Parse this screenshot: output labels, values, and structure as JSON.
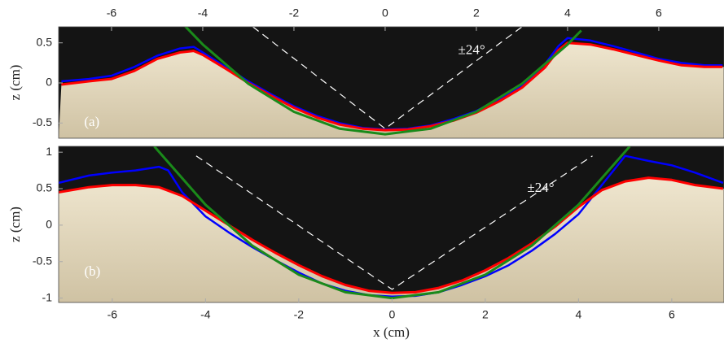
{
  "chart_data": [
    {
      "type": "line",
      "xaxis_position": "top",
      "xlim": [
        -7.16,
        7.43
      ],
      "ylim": [
        -0.69,
        0.7
      ],
      "xticks": [
        -6,
        -4,
        -2,
        0,
        2,
        4,
        6
      ],
      "yticks": [
        -0.5,
        0,
        0.5
      ],
      "ylabel": "z (cm)",
      "annotations": [
        {
          "text": "(a)",
          "x": -6.6,
          "y": -0.5
        },
        {
          "text": "±24°",
          "x": 1.6,
          "y": 0.4
        }
      ],
      "series": [
        {
          "color": "#0000ff",
          "x": [
            -7.1,
            -6.5,
            -6,
            -5.5,
            -5,
            -4.5,
            -4.2,
            -4,
            -3.5,
            -3,
            -2.5,
            -2,
            -1.5,
            -1,
            -0.5,
            0,
            0.5,
            1,
            1.5,
            2,
            2.5,
            3,
            3.5,
            3.8,
            4,
            4.5,
            5,
            5.5,
            6,
            6.5,
            7,
            7.4
          ],
          "values": [
            0.02,
            0.05,
            0.09,
            0.2,
            0.34,
            0.43,
            0.45,
            0.38,
            0.2,
            0.02,
            -0.14,
            -0.29,
            -0.41,
            -0.5,
            -0.56,
            -0.58,
            -0.57,
            -0.53,
            -0.45,
            -0.35,
            -0.2,
            -0.03,
            0.23,
            0.46,
            0.56,
            0.53,
            0.46,
            0.38,
            0.3,
            0.25,
            0.22,
            0.22
          ]
        },
        {
          "color": "#ff0000",
          "x": [
            -7.1,
            -6.5,
            -6,
            -5.5,
            -5,
            -4.5,
            -4.2,
            -4,
            -3.5,
            -3,
            -2.5,
            -2,
            -1.5,
            -1,
            -0.5,
            0,
            0.5,
            1,
            1.5,
            2,
            2.5,
            3,
            3.5,
            3.8,
            4,
            4.5,
            5,
            5.5,
            6,
            6.5,
            7,
            7.4
          ],
          "values": [
            -0.02,
            0.02,
            0.05,
            0.15,
            0.3,
            0.38,
            0.4,
            0.35,
            0.18,
            0.0,
            -0.16,
            -0.31,
            -0.43,
            -0.52,
            -0.57,
            -0.59,
            -0.58,
            -0.54,
            -0.47,
            -0.37,
            -0.23,
            -0.06,
            0.19,
            0.41,
            0.5,
            0.48,
            0.42,
            0.35,
            0.28,
            0.22,
            0.2,
            0.2
          ]
        },
        {
          "color": "#1a8a1a",
          "x": [
            -4.4,
            -4,
            -3,
            -2,
            -1,
            0,
            1,
            2,
            3,
            4,
            4.3
          ],
          "values": [
            0.715,
            0.48,
            -0.01,
            -0.36,
            -0.57,
            -0.64,
            -0.57,
            -0.36,
            -0.01,
            0.48,
            0.654
          ]
        },
        {
          "color": "#ffffff",
          "dashed": true,
          "x": [
            -2.9,
            0,
            3
          ],
          "values": [
            0.7,
            -0.57,
            0.7
          ]
        }
      ]
    },
    {
      "type": "line",
      "xaxis_position": "bottom",
      "xlim": [
        -7.15,
        7.12
      ],
      "ylim": [
        -1.06,
        1.08
      ],
      "xticks": [
        -6,
        -4,
        -2,
        0,
        2,
        4,
        6
      ],
      "yticks": [
        -1,
        -0.5,
        0,
        0.5,
        1
      ],
      "xlabel": "x (cm)",
      "ylabel": "z (cm)",
      "annotations": [
        {
          "text": "(b)",
          "x": -6.6,
          "y": -0.65
        },
        {
          "text": "±24°",
          "x": 2.9,
          "y": 0.5
        }
      ],
      "series": [
        {
          "color": "#0000ff",
          "x": [
            -7.15,
            -6.5,
            -6,
            -5.5,
            -5,
            -4.8,
            -4.5,
            -4,
            -3.5,
            -3,
            -2.5,
            -2,
            -1.5,
            -1,
            -0.5,
            0,
            0.5,
            1,
            1.5,
            2,
            2.5,
            3,
            3.5,
            4,
            4.5,
            5,
            5.5,
            6,
            6.5,
            7.1
          ],
          "values": [
            0.58,
            0.68,
            0.72,
            0.75,
            0.8,
            0.75,
            0.45,
            0.12,
            -0.1,
            -0.3,
            -0.48,
            -0.65,
            -0.8,
            -0.9,
            -0.96,
            -0.98,
            -0.97,
            -0.92,
            -0.82,
            -0.7,
            -0.55,
            -0.35,
            -0.12,
            0.15,
            0.55,
            0.95,
            0.88,
            0.82,
            0.72,
            0.58
          ]
        },
        {
          "color": "#ff0000",
          "x": [
            -7.15,
            -6.5,
            -6,
            -5.5,
            -5,
            -4.5,
            -4,
            -3.5,
            -3,
            -2.5,
            -2,
            -1.5,
            -1,
            -0.5,
            0,
            0.5,
            1,
            1.5,
            2,
            2.5,
            3,
            3.5,
            4,
            4.5,
            5,
            5.5,
            6,
            6.5,
            7.1
          ],
          "values": [
            0.45,
            0.52,
            0.55,
            0.55,
            0.52,
            0.4,
            0.2,
            0.0,
            -0.2,
            -0.38,
            -0.55,
            -0.7,
            -0.82,
            -0.9,
            -0.93,
            -0.92,
            -0.86,
            -0.76,
            -0.62,
            -0.45,
            -0.25,
            -0.02,
            0.25,
            0.48,
            0.6,
            0.65,
            0.62,
            0.55,
            0.5
          ]
        },
        {
          "color": "#1a8a1a",
          "x": [
            -5.1,
            -4,
            -3,
            -2,
            -1,
            0,
            1,
            2,
            3,
            4,
            5.1
          ],
          "values": [
            1.08,
            0.28,
            -0.28,
            -0.68,
            -0.92,
            -1,
            -0.92,
            -0.68,
            -0.28,
            0.28,
            1.08
          ]
        },
        {
          "color": "#ffffff",
          "dashed": true,
          "x": [
            -4.2,
            0,
            4.3
          ],
          "values": [
            0.95,
            -0.88,
            0.95
          ]
        }
      ]
    }
  ]
}
